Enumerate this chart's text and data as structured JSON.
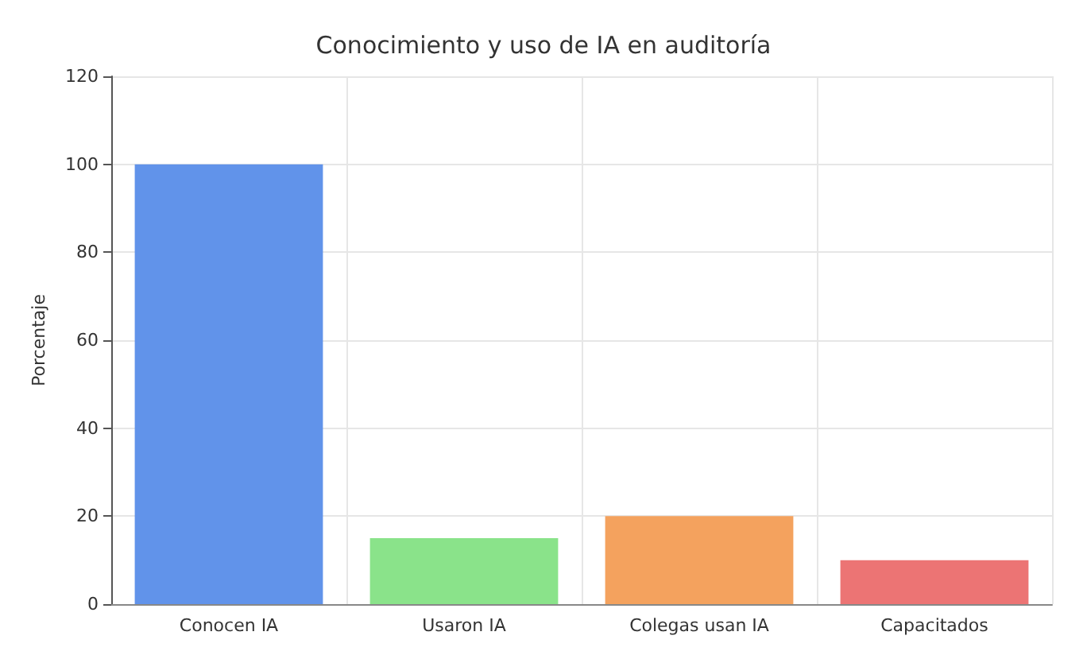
{
  "chart_data": {
    "type": "bar",
    "title": "Conocimiento y uso de IA en auditoría",
    "ylabel": "Porcentaje",
    "categories": [
      "Conocen IA",
      "Usaron IA",
      "Colegas usan IA",
      "Capacitados"
    ],
    "values": [
      100,
      15,
      20,
      10
    ],
    "colors": [
      "#6193ea",
      "#8ae38a",
      "#f4a25e",
      "#ec7474"
    ],
    "ylim": [
      0,
      120
    ],
    "yticks": [
      0,
      20,
      40,
      60,
      80,
      100,
      120
    ],
    "grid": true
  }
}
